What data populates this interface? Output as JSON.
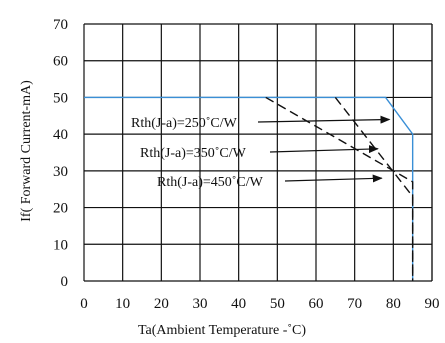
{
  "chart_data": {
    "type": "line",
    "title": "",
    "xlabel": "Ta(Ambient Temperature -˚C)",
    "ylabel": "If( Forward Current-mA)",
    "xlim": [
      0,
      90
    ],
    "ylim": [
      0,
      70
    ],
    "x_ticks": [
      0,
      10,
      20,
      30,
      40,
      50,
      60,
      70,
      80,
      90
    ],
    "y_ticks": [
      0,
      10,
      20,
      30,
      40,
      50,
      60,
      70
    ],
    "x_tick_labels": [
      "0",
      "10",
      "20",
      "30",
      "40",
      "50",
      "60",
      "70",
      "80",
      "90"
    ],
    "y_tick_labels": [
      "0",
      "10",
      "20",
      "30",
      "40",
      "50",
      "60",
      "70"
    ],
    "grid": true,
    "series": [
      {
        "style": "solid",
        "color": "#3a8fd6",
        "x": [
          0,
          78,
          85,
          85
        ],
        "y": [
          50,
          50,
          40,
          0
        ]
      },
      {
        "style": "dashed",
        "color": "#111111",
        "x": [
          65,
          85,
          85
        ],
        "y": [
          50,
          23,
          0
        ]
      },
      {
        "style": "dashed",
        "color": "#111111",
        "x": [
          47,
          85,
          85
        ],
        "y": [
          50,
          27,
          0
        ]
      }
    ],
    "annotations": [
      {
        "text": "Rth(J-a)=250˚C/W",
        "arrow_to": [
          79,
          44
        ]
      },
      {
        "text": "Rth(J-a)=350˚C/W",
        "arrow_to": [
          76,
          36
        ]
      },
      {
        "text": "Rth(J-a)=450˚C/W",
        "arrow_to": [
          77,
          28
        ]
      }
    ]
  }
}
